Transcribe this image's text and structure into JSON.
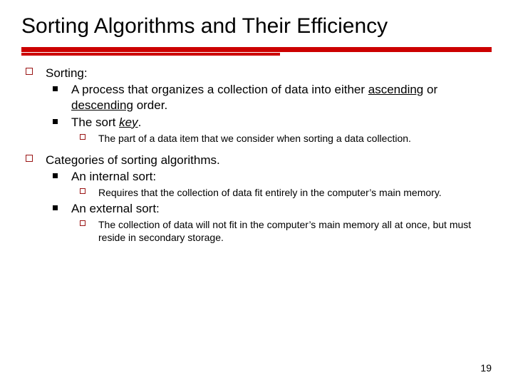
{
  "title": "Sorting Algorithms and Their Efficiency",
  "rule": {
    "color": "#cc0000",
    "thick": 7,
    "thin": 4
  },
  "bullets": {
    "a": {
      "head": "Sorting:",
      "a1a": "A process that organizes a collection of data into either ",
      "a1b": "ascending",
      "a1c": " or ",
      "a1d": "descending",
      "a1e": " order.",
      "a2a": "The sort ",
      "a2b": "key",
      "a2c": ".",
      "a2_1": "The part of a data item that we consider when sorting a data collection."
    },
    "b": {
      "head": "Categories of sorting algorithms.",
      "b1": "An internal sort:",
      "b1_1": "Requires that the collection of data fit entirely in the computer’s main memory.",
      "b2": "An external sort:",
      "b2_1": "The collection of data will not fit in the computer’s main memory all at once, but must reside in secondary storage."
    }
  },
  "page_number": "19",
  "fonts": {
    "body": 17,
    "sub": 14,
    "title": 30
  },
  "colors": {
    "text": "#000000",
    "bullet_border": "#9a1515",
    "bg": "#ffffff"
  }
}
